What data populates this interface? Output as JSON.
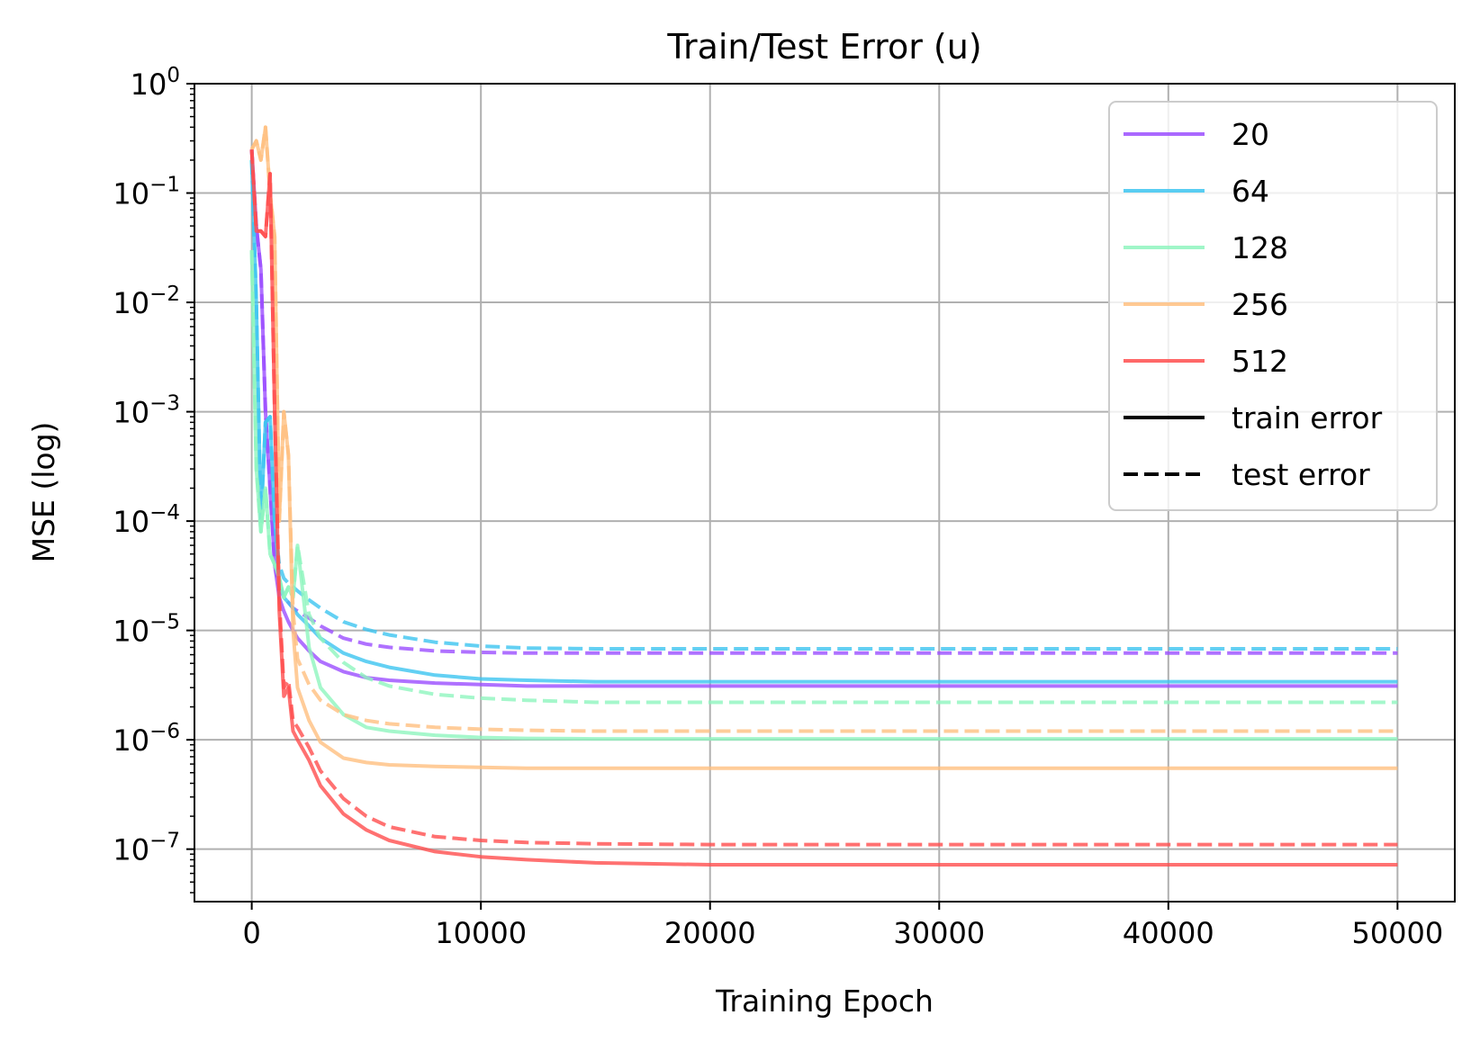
{
  "chart_data": {
    "type": "line",
    "title": "Train/Test Error (u)",
    "xlabel": "Training Epoch",
    "ylabel": "MSE (log)",
    "xlim": [
      -2500,
      52500
    ],
    "ylim_log10": [
      -7.48,
      0
    ],
    "yscale": "log",
    "grid": true,
    "legend_position": "top-right",
    "x_ticks": [
      0,
      10000,
      20000,
      30000,
      40000,
      50000
    ],
    "x_tick_labels": [
      "0",
      "10000",
      "20000",
      "30000",
      "40000",
      "50000"
    ],
    "y_ticks_exp": [
      0,
      -1,
      -2,
      -3,
      -4,
      -5,
      -6,
      -7
    ],
    "y_tick_base": "10",
    "y_tick_exponents": [
      "0",
      "−1",
      "−2",
      "−3",
      "−4",
      "−5",
      "−6",
      "−7"
    ],
    "x": [
      0,
      200,
      400,
      600,
      800,
      1000,
      1200,
      1400,
      1600,
      1800,
      2000,
      2500,
      3000,
      4000,
      5000,
      6000,
      8000,
      10000,
      12000,
      15000,
      20000,
      25000,
      30000,
      35000,
      40000,
      45000,
      50000
    ],
    "series": [
      {
        "name": "20",
        "kind": "train",
        "color": "#9b4dff",
        "values": [
          0.25,
          0.05,
          0.02,
          0.001,
          0.0002,
          4e-05,
          2e-05,
          1.5e-05,
          1.2e-05,
          1e-05,
          8.5e-06,
          6.5e-06,
          5.2e-06,
          4.2e-06,
          3.7e-06,
          3.5e-06,
          3.3e-06,
          3.2e-06,
          3.1e-06,
          3.1e-06,
          3.1e-06,
          3.1e-06,
          3.1e-06,
          3.1e-06,
          3.1e-06,
          3.1e-06,
          3.1e-06
        ]
      },
      {
        "name": "20",
        "kind": "test",
        "color": "#9b4dff",
        "values": [
          0.25,
          0.05,
          0.02,
          0.001,
          0.0002,
          4e-05,
          2.5e-05,
          2e-05,
          1.8e-05,
          1.6e-05,
          1.5e-05,
          1.3e-05,
          1.1e-05,
          8.5e-06,
          7.5e-06,
          7e-06,
          6.5e-06,
          6.3e-06,
          6.2e-06,
          6.2e-06,
          6.2e-06,
          6.2e-06,
          6.2e-06,
          6.2e-06,
          6.2e-06,
          6.2e-06,
          6.2e-06
        ]
      },
      {
        "name": "64",
        "kind": "train",
        "color": "#3cc4f0",
        "values": [
          0.2,
          0.01,
          0.0001,
          0.0008,
          0.0009,
          0.0001,
          3e-05,
          2e-05,
          1.8e-05,
          1.6e-05,
          1.4e-05,
          1.1e-05,
          8.5e-06,
          6.2e-06,
          5.2e-06,
          4.6e-06,
          3.9e-06,
          3.6e-06,
          3.5e-06,
          3.4e-06,
          3.4e-06,
          3.4e-06,
          3.4e-06,
          3.4e-06,
          3.4e-06,
          3.4e-06,
          3.4e-06
        ]
      },
      {
        "name": "64",
        "kind": "test",
        "color": "#3cc4f0",
        "values": [
          0.2,
          0.01,
          0.0001,
          0.0008,
          0.0009,
          0.0001,
          4e-05,
          3e-05,
          2.7e-05,
          2.5e-05,
          2.3e-05,
          1.9e-05,
          1.6e-05,
          1.2e-05,
          1.02e-05,
          9.1e-06,
          7.8e-06,
          7.2e-06,
          6.9e-06,
          6.8e-06,
          6.8e-06,
          6.8e-06,
          6.8e-06,
          6.8e-06,
          6.8e-06,
          6.8e-06,
          6.8e-06
        ]
      },
      {
        "name": "128",
        "kind": "train",
        "color": "#8ff5be",
        "values": [
          0.03,
          0.0003,
          8e-05,
          0.0002,
          5e-05,
          4e-05,
          3e-05,
          2e-05,
          2.5e-05,
          2e-05,
          6e-05,
          7e-06,
          3e-06,
          1.7e-06,
          1.3e-06,
          1.2e-06,
          1.1e-06,
          1.05e-06,
          1.03e-06,
          1.02e-06,
          1.02e-06,
          1.02e-06,
          1.02e-06,
          1.02e-06,
          1.02e-06,
          1.02e-06,
          1.02e-06
        ]
      },
      {
        "name": "128",
        "kind": "test",
        "color": "#8ff5be",
        "values": [
          0.03,
          0.0003,
          8e-05,
          0.0002,
          5e-05,
          4e-05,
          3e-05,
          2e-05,
          2.5e-05,
          2e-05,
          6e-05,
          1.4e-05,
          8.5e-06,
          5.1e-06,
          3.7e-06,
          3.1e-06,
          2.6e-06,
          2.4e-06,
          2.3e-06,
          2.2e-06,
          2.2e-06,
          2.2e-06,
          2.2e-06,
          2.2e-06,
          2.2e-06,
          2.2e-06,
          2.2e-06
        ]
      },
      {
        "name": "256",
        "kind": "train",
        "color": "#ffbf80",
        "values": [
          0.25,
          0.3,
          0.2,
          0.4,
          0.1,
          0.04,
          0.0001,
          0.001,
          0.0004,
          1e-05,
          3e-06,
          1.5e-06,
          9.5e-07,
          6.8e-07,
          6.2e-07,
          5.9e-07,
          5.7e-07,
          5.6e-07,
          5.5e-07,
          5.5e-07,
          5.5e-07,
          5.5e-07,
          5.5e-07,
          5.5e-07,
          5.5e-07,
          5.5e-07,
          5.5e-07
        ]
      },
      {
        "name": "256",
        "kind": "test",
        "color": "#ffbf80",
        "values": [
          0.25,
          0.3,
          0.2,
          0.4,
          0.1,
          0.04,
          0.0001,
          0.001,
          0.0004,
          1.5e-05,
          5.5e-06,
          3.2e-06,
          2.3e-06,
          1.7e-06,
          1.5e-06,
          1.4e-06,
          1.3e-06,
          1.25e-06,
          1.22e-06,
          1.2e-06,
          1.2e-06,
          1.2e-06,
          1.2e-06,
          1.2e-06,
          1.2e-06,
          1.2e-06,
          1.2e-06
        ]
      },
      {
        "name": "512",
        "kind": "train",
        "color": "#ff4d4d",
        "values": [
          0.25,
          0.045,
          0.045,
          0.04,
          0.15,
          0.001,
          1.5e-05,
          2.5e-06,
          3e-06,
          1.2e-06,
          1e-06,
          6.5e-07,
          3.8e-07,
          2.1e-07,
          1.5e-07,
          1.2e-07,
          9.5e-08,
          8.5e-08,
          8e-08,
          7.5e-08,
          7.2e-08,
          7.2e-08,
          7.2e-08,
          7.2e-08,
          7.2e-08,
          7.2e-08,
          7.2e-08
        ]
      },
      {
        "name": "512",
        "kind": "test",
        "color": "#ff4d4d",
        "values": [
          0.25,
          0.045,
          0.045,
          0.04,
          0.15,
          0.001,
          2e-05,
          3e-06,
          3.5e-06,
          1.5e-06,
          1.3e-06,
          8.5e-07,
          5.2e-07,
          2.9e-07,
          2e-07,
          1.6e-07,
          1.3e-07,
          1.2e-07,
          1.15e-07,
          1.12e-07,
          1.1e-07,
          1.1e-07,
          1.1e-07,
          1.1e-07,
          1.1e-07,
          1.1e-07,
          1.1e-07
        ]
      }
    ],
    "legend": [
      {
        "label": "20",
        "color": "#9b4dff",
        "style": "solid"
      },
      {
        "label": "64",
        "color": "#3cc4f0",
        "style": "solid"
      },
      {
        "label": "128",
        "color": "#8ff5be",
        "style": "solid"
      },
      {
        "label": "256",
        "color": "#ffbf80",
        "style": "solid"
      },
      {
        "label": "512",
        "color": "#ff4d4d",
        "style": "solid"
      },
      {
        "label": "train error",
        "color": "#000000",
        "style": "solid"
      },
      {
        "label": "test error",
        "color": "#000000",
        "style": "dashed"
      }
    ]
  }
}
